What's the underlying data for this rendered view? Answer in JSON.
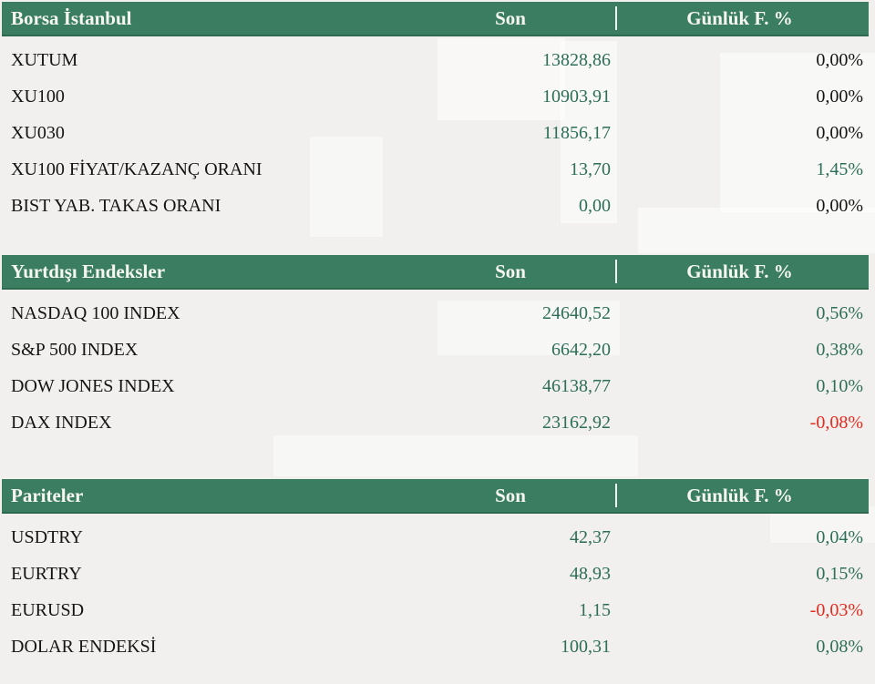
{
  "colors": {
    "header_bg": "#3a7d60",
    "header_edge": "#2e6a4e",
    "header_text": "#f7f7f2",
    "value_green": "#2d6e58",
    "pct_green": "#2d6e58",
    "pct_red": "#e32b1e",
    "text_black": "#141414",
    "page_bg": "#f1f0ee"
  },
  "columns": {
    "son": "Son",
    "pct": "Günlük F. %"
  },
  "tables": [
    {
      "title": "Borsa İstanbul",
      "rows": [
        {
          "label": "XUTUM",
          "son": "13828,86",
          "pct": "0,00%",
          "change": "flat"
        },
        {
          "label": "XU100",
          "son": "10903,91",
          "pct": "0,00%",
          "change": "flat"
        },
        {
          "label": "XU030",
          "son": "11856,17",
          "pct": "0,00%",
          "change": "flat"
        },
        {
          "label": "XU100 FİYAT/KAZANÇ ORANI",
          "son": "13,70",
          "pct": "1,45%",
          "change": "up"
        },
        {
          "label": "BIST YAB. TAKAS ORANI",
          "son": "0,00",
          "pct": "0,00%",
          "change": "flat"
        }
      ]
    },
    {
      "title": "Yurtdışı Endeksler",
      "rows": [
        {
          "label": "NASDAQ 100 INDEX",
          "son": "24640,52",
          "pct": "0,56%",
          "change": "up"
        },
        {
          "label": "S&P 500 INDEX",
          "son": "6642,20",
          "pct": "0,38%",
          "change": "up"
        },
        {
          "label": "DOW JONES INDEX",
          "son": "46138,77",
          "pct": "0,10%",
          "change": "up"
        },
        {
          "label": "DAX INDEX",
          "son": "23162,92",
          "pct": "-0,08%",
          "change": "down"
        }
      ]
    },
    {
      "title": "Pariteler",
      "rows": [
        {
          "label": "USDTRY",
          "son": "42,37",
          "pct": "0,04%",
          "change": "up"
        },
        {
          "label": "EURTRY",
          "son": "48,93",
          "pct": "0,15%",
          "change": "up"
        },
        {
          "label": "EURUSD",
          "son": "1,15",
          "pct": "-0,03%",
          "change": "down"
        },
        {
          "label": "DOLAR ENDEKSİ",
          "son": "100,31",
          "pct": "0,08%",
          "change": "up"
        }
      ]
    }
  ]
}
